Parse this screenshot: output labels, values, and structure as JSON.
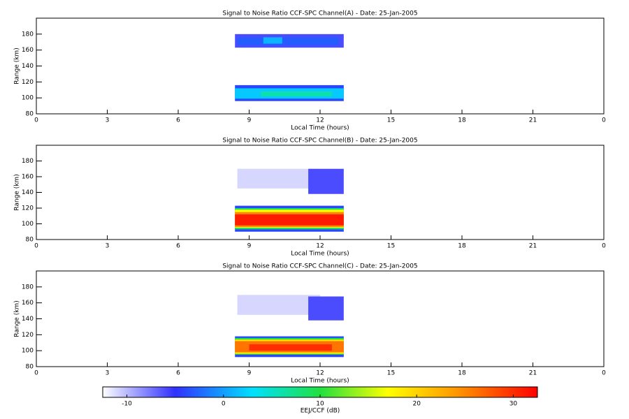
{
  "chart_data": [
    {
      "type": "heatmap",
      "title": "Signal to Noise Ratio CCF-SPC Channel(A) - Date: 25-Jan-2005",
      "xlabel": "Local Time (hours)",
      "ylabel": "Range (km)",
      "xlim": [
        0,
        24
      ],
      "xticks": [
        0,
        3,
        6,
        9,
        12,
        15,
        18,
        21,
        {
          "value": 24,
          "label": "0"
        }
      ],
      "ylim": [
        80,
        200
      ],
      "yticks": [
        80,
        100,
        120,
        140,
        160,
        180
      ],
      "cells": [
        {
          "x": [
            8.4,
            13
          ],
          "y": [
            163,
            180
          ],
          "value": -6
        },
        {
          "x": [
            8.5,
            12.8
          ],
          "y": [
            166,
            176
          ],
          "value": -3
        },
        {
          "x": [
            9.6,
            10.4
          ],
          "y": [
            168,
            176
          ],
          "value": 1
        },
        {
          "x": [
            8.4,
            13
          ],
          "y": [
            96,
            116
          ],
          "value": -4
        },
        {
          "x": [
            8.4,
            13
          ],
          "y": [
            99,
            112
          ],
          "value": 2
        },
        {
          "x": [
            9.5,
            12.5
          ],
          "y": [
            102,
            108
          ],
          "value": 6
        }
      ]
    },
    {
      "type": "heatmap",
      "title": "Signal to Noise Ratio CCF-SPC Channel(B) - Date: 25-Jan-2005",
      "xlabel": "Local Time (hours)",
      "ylabel": "Range (km)",
      "xlim": [
        0,
        24
      ],
      "xticks": [
        0,
        3,
        6,
        9,
        12,
        15,
        18,
        21,
        {
          "value": 24,
          "label": "0"
        }
      ],
      "ylim": [
        80,
        200
      ],
      "yticks": [
        80,
        100,
        120,
        140,
        160,
        180
      ],
      "cells": [
        {
          "x": [
            8.5,
            12
          ],
          "y": [
            145,
            170
          ],
          "value": -11
        },
        {
          "x": [
            11.5,
            13
          ],
          "y": [
            138,
            170
          ],
          "value": -6
        },
        {
          "x": [
            8.4,
            13
          ],
          "y": [
            90,
            123
          ],
          "value": -4
        },
        {
          "x": [
            8.4,
            13
          ],
          "y": [
            93,
            120
          ],
          "value": 9
        },
        {
          "x": [
            8.4,
            13
          ],
          "y": [
            95,
            118
          ],
          "value": 17
        },
        {
          "x": [
            8.4,
            13
          ],
          "y": [
            96,
            115
          ],
          "value": 25
        },
        {
          "x": [
            8.4,
            13
          ],
          "y": [
            98,
            112
          ],
          "value": 31
        }
      ]
    },
    {
      "type": "heatmap",
      "title": "Signal to Noise Ratio CCF-SPC Channel(C) - Date: 25-Jan-2005",
      "xlabel": "Local Time (hours)",
      "ylabel": "Range (km)",
      "xlim": [
        0,
        24
      ],
      "xticks": [
        0,
        3,
        6,
        9,
        12,
        15,
        18,
        21,
        {
          "value": 24,
          "label": "0"
        }
      ],
      "ylim": [
        80,
        200
      ],
      "yticks": [
        80,
        100,
        120,
        140,
        160,
        180
      ],
      "cells": [
        {
          "x": [
            8.5,
            12
          ],
          "y": [
            145,
            170
          ],
          "value": -11
        },
        {
          "x": [
            11.5,
            13
          ],
          "y": [
            138,
            168
          ],
          "value": -6
        },
        {
          "x": [
            8.4,
            13
          ],
          "y": [
            92,
            118
          ],
          "value": -4
        },
        {
          "x": [
            8.4,
            13
          ],
          "y": [
            95,
            116
          ],
          "value": 10
        },
        {
          "x": [
            8.4,
            13
          ],
          "y": [
            96,
            114
          ],
          "value": 19
        },
        {
          "x": [
            8.4,
            13
          ],
          "y": [
            98,
            112
          ],
          "value": 26
        },
        {
          "x": [
            9,
            12.5
          ],
          "y": [
            100,
            108
          ],
          "value": 30
        }
      ]
    },
    {
      "type": "colorbar",
      "label": "EEJ/CCF (dB)",
      "lim": [
        -12.5,
        32.5
      ],
      "ticks": [
        -10,
        0,
        10,
        20,
        30
      ],
      "colorscale": [
        {
          "value": -12.5,
          "color": "#ffffff"
        },
        {
          "value": -5,
          "color": "#3030ff"
        },
        {
          "value": 3,
          "color": "#00e0ff"
        },
        {
          "value": 10,
          "color": "#20e040"
        },
        {
          "value": 17,
          "color": "#ffff00"
        },
        {
          "value": 24,
          "color": "#ff9900"
        },
        {
          "value": 32.5,
          "color": "#ff0000"
        }
      ]
    }
  ]
}
